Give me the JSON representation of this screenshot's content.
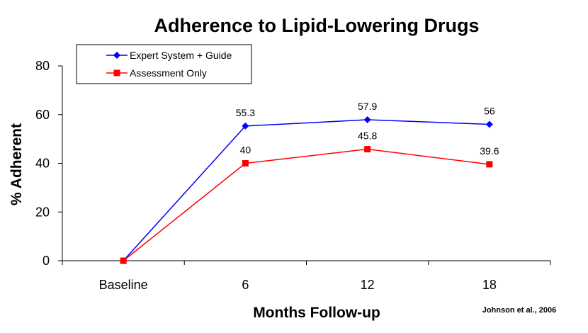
{
  "chart_data": {
    "type": "line",
    "title": "Adherence to Lipid-Lowering Drugs",
    "xlabel": "Months Follow-up",
    "ylabel": "% Adherent",
    "categories": [
      "Baseline",
      "6",
      "12",
      "18"
    ],
    "ylim": [
      0,
      80
    ],
    "yticks": [
      0,
      20,
      40,
      60,
      80
    ],
    "grid": false,
    "legend_position": "top-left",
    "series": [
      {
        "name": "Expert System + Guide",
        "color": "#0000ff",
        "marker": "diamond",
        "values": [
          0,
          55.3,
          57.9,
          56
        ],
        "labels": [
          "",
          "55.3",
          "57.9",
          "56"
        ]
      },
      {
        "name": "Assessment Only",
        "color": "#ff0000",
        "marker": "square",
        "values": [
          0,
          40,
          45.8,
          39.6
        ],
        "labels": [
          "",
          "40",
          "45.8",
          "39.6"
        ]
      }
    ],
    "source_note": "Johnson et al., 2006"
  }
}
